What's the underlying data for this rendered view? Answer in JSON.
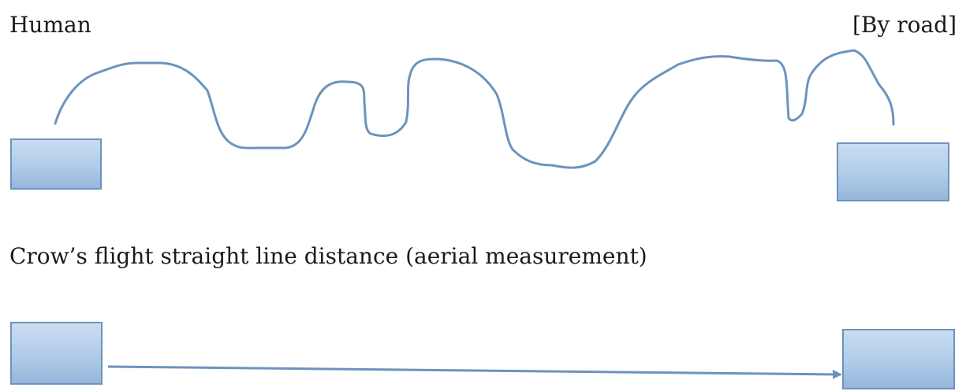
{
  "diagram": {
    "road_section": {
      "left_label": "Human",
      "right_label": "[By road]"
    },
    "aerial_section": {
      "label": "Crow’s flight straight line distance (aerial measurement)"
    },
    "colors": {
      "path_stroke": "#6d93bd",
      "box_border": "#6d93bd",
      "box_fill_top": "#c9ddf2",
      "box_fill_bottom": "#96b6dc",
      "text": "#1a1a1a"
    }
  }
}
